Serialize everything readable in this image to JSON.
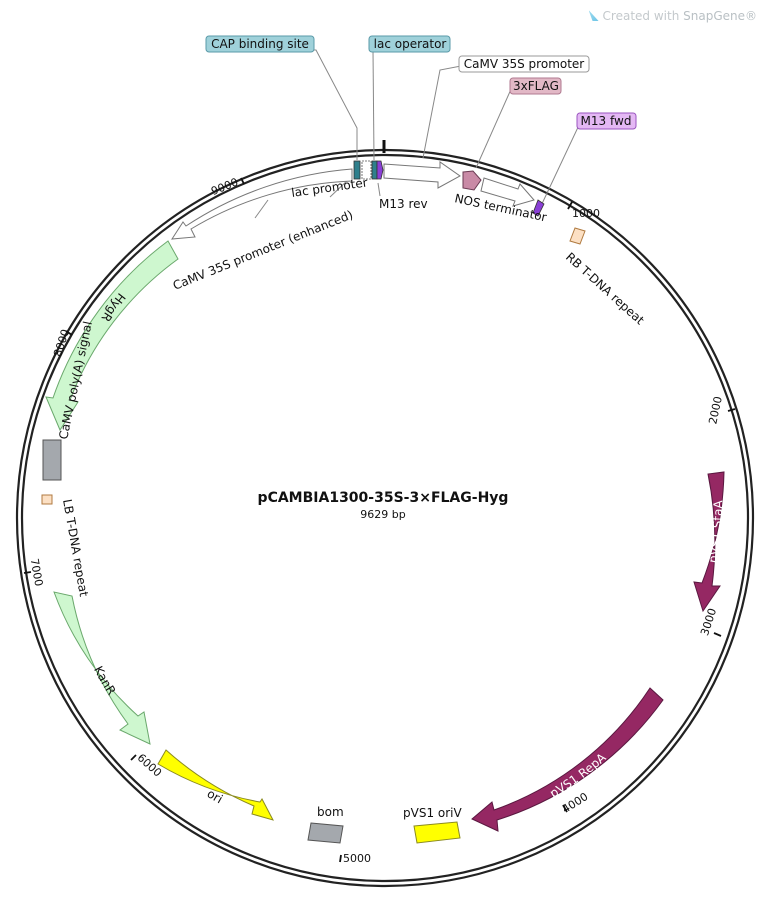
{
  "watermark": {
    "prefix": "Created with ",
    "brand": "SnapGene®"
  },
  "plasmid": {
    "name": "pCAMBIA1300-35S-3×FLAG-Hyg",
    "length_label": "9629 bp"
  },
  "ticks": [
    {
      "label": "1000"
    },
    {
      "label": "2000"
    },
    {
      "label": "3000"
    },
    {
      "label": "4000"
    },
    {
      "label": "5000"
    },
    {
      "label": "6000"
    },
    {
      "label": "7000"
    },
    {
      "label": "8000"
    },
    {
      "label": "9000"
    }
  ],
  "callouts": [
    {
      "label": "CAP binding site",
      "fill": "#9fd1da",
      "stroke": "#5a9aa8"
    },
    {
      "label": "lac operator",
      "fill": "#9fd1da",
      "stroke": "#5a9aa8"
    },
    {
      "label": "CaMV 35S promoter",
      "fill": "#ffffff",
      "stroke": "#9a9a9a"
    },
    {
      "label": "3xFLAG",
      "fill": "#e2b8c6",
      "stroke": "#b07a90"
    },
    {
      "label": "M13 fwd",
      "fill": "#e4b8f4",
      "stroke": "#9a55bf"
    }
  ],
  "features": [
    {
      "label": "lac promoter",
      "color": "#ffffff"
    },
    {
      "label": "CaMV 35S promoter (enhanced)",
      "color": "#ffffff"
    },
    {
      "label": "M13 rev",
      "color": "#8a3fd6"
    },
    {
      "label": "NOS terminator",
      "color": "#ffffff"
    },
    {
      "label": "RB T-DNA repeat",
      "color": "#fce0c4"
    },
    {
      "label": "HygR",
      "color": "#cef7cf"
    },
    {
      "label": "CaMV poly(A) signal",
      "color": "#a4a8ad"
    },
    {
      "label": "LB T-DNA repeat",
      "color": "#fce0c4"
    },
    {
      "label": "KanR",
      "color": "#cef7cf"
    },
    {
      "label": "ori",
      "color": "#ffff00"
    },
    {
      "label": "bom",
      "color": "#a4a8ad"
    },
    {
      "label": "pVS1 oriV",
      "color": "#ffff00"
    },
    {
      "label": "pVS1 RepA",
      "color": "#952863"
    },
    {
      "label": "pVS1 StaA",
      "color": "#952863"
    }
  ]
}
